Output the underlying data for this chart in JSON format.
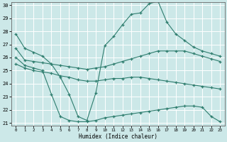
{
  "xlabel": "Humidex (Indice chaleur)",
  "background_color": "#cce8e8",
  "grid_color": "#ffffff",
  "line_color": "#2e7d6e",
  "line_max": [
    27.8,
    26.7,
    26.4,
    26.1,
    25.5,
    24.5,
    23.2,
    21.5,
    21.2,
    23.3,
    26.9,
    27.6,
    28.5,
    29.3,
    29.4,
    30.1,
    30.3,
    28.7,
    27.8,
    27.3,
    26.8,
    26.5,
    26.3,
    26.1
  ],
  "line_upper": [
    26.7,
    25.8,
    25.7,
    25.6,
    25.5,
    25.4,
    25.3,
    25.2,
    25.1,
    25.2,
    25.3,
    25.5,
    25.7,
    25.9,
    26.1,
    26.3,
    26.5,
    26.5,
    26.5,
    26.5,
    26.3,
    26.1,
    25.9,
    25.7
  ],
  "line_lower": [
    25.5,
    25.2,
    25.0,
    24.9,
    24.8,
    24.6,
    24.5,
    24.3,
    24.2,
    24.2,
    24.3,
    24.4,
    24.4,
    24.5,
    24.5,
    24.4,
    24.3,
    24.2,
    24.1,
    24.0,
    23.9,
    23.8,
    23.7,
    23.6
  ],
  "line_min": [
    26.0,
    25.4,
    25.2,
    25.0,
    23.2,
    21.5,
    21.2,
    21.1,
    21.1,
    21.2,
    21.4,
    21.5,
    21.6,
    21.7,
    21.8,
    21.9,
    22.0,
    22.1,
    22.2,
    22.3,
    22.3,
    22.2,
    21.5,
    21.1
  ],
  "ylim": [
    21,
    30
  ],
  "xlim": [
    -0.5,
    23.5
  ],
  "yticks": [
    21,
    22,
    23,
    24,
    25,
    26,
    27,
    28,
    29,
    30
  ],
  "xticks": [
    0,
    1,
    2,
    3,
    4,
    5,
    6,
    7,
    8,
    9,
    10,
    11,
    12,
    13,
    14,
    15,
    16,
    17,
    18,
    19,
    20,
    21,
    22,
    23
  ]
}
